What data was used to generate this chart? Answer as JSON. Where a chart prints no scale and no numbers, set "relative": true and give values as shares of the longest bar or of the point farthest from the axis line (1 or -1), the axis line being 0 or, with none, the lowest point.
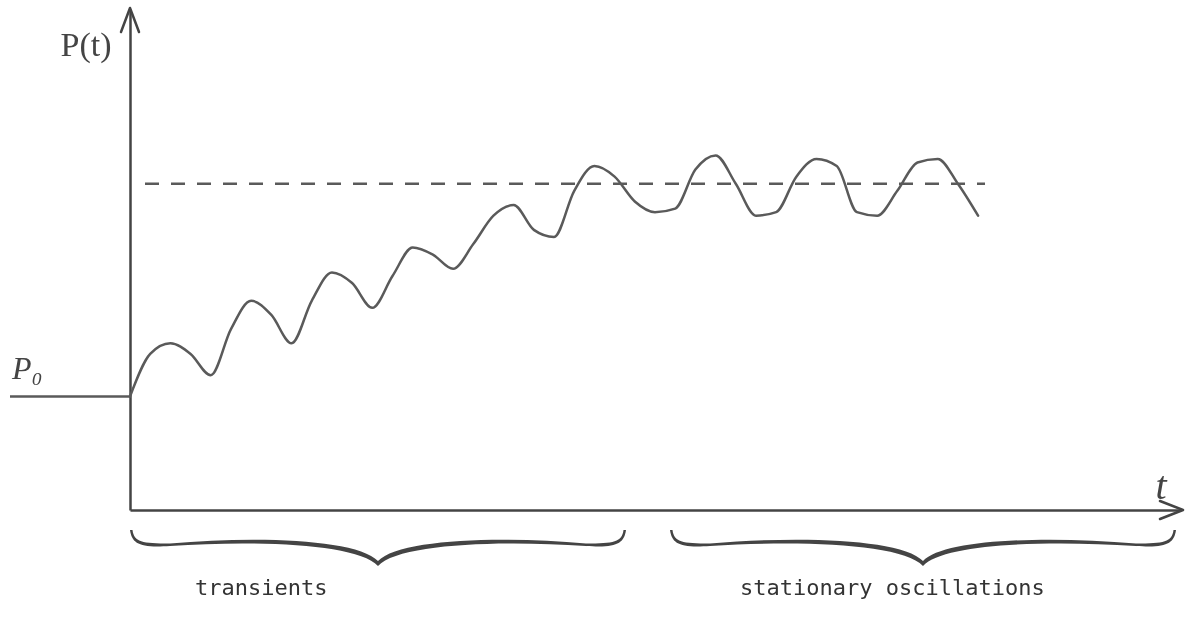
{
  "chart_data": {
    "type": "line",
    "relative": true,
    "ylabel": "P(t)",
    "xlabel": "t",
    "grid": false,
    "line_style": "solid",
    "marker": "none",
    "categories": [
      null,
      null,
      null,
      null,
      null,
      null,
      null,
      null,
      null,
      null,
      null,
      null,
      null,
      null,
      null,
      null,
      null,
      null,
      null,
      null,
      null,
      null,
      null,
      null,
      null,
      null,
      null,
      null,
      null,
      null,
      null,
      null,
      null,
      null,
      null,
      null,
      null,
      null,
      null,
      null,
      null,
      null,
      null,
      null,
      null,
      null,
      null,
      null,
      null,
      null,
      null,
      null,
      null
    ],
    "series": [
      {
        "color": "#5a5a5a",
        "values": [
          0.32,
          0.44,
          0.47,
          0.44,
          0.38,
          0.51,
          0.59,
          0.55,
          0.47,
          0.59,
          0.67,
          0.64,
          0.57,
          0.66,
          0.74,
          0.72,
          0.68,
          0.75,
          0.83,
          0.86,
          0.79,
          0.77,
          0.9,
          0.97,
          0.94,
          0.87,
          0.84,
          0.85,
          0.96,
          1.0,
          0.92,
          0.83,
          0.84,
          0.94,
          0.99,
          0.97,
          0.84,
          0.83,
          0.9,
          0.98,
          0.99,
          0.92,
          0.83,
          null,
          null,
          null,
          null,
          null,
          null,
          null,
          null,
          null,
          null
        ]
      }
    ],
    "ref_lines": [
      {
        "axis": "y",
        "value": 0.32,
        "label": "P₀",
        "color": "#5a5a5a",
        "line_style": "solid"
      },
      {
        "axis": "y",
        "value": 0.92,
        "color": "#5a5a5a",
        "line_style": "dashed"
      }
    ],
    "annotations": [
      "transients",
      "stationary oscillations"
    ]
  }
}
